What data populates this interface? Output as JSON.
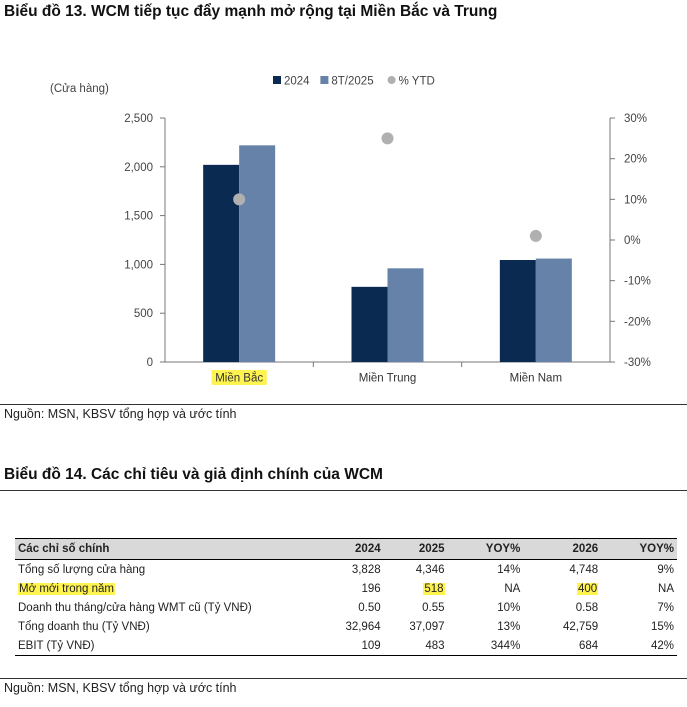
{
  "figure13": {
    "title": "Biểu đồ 13. WCM tiếp tục đẩy mạnh mở rộng tại Miền Bắc và Trung",
    "source": "Nguồn: MSN, KBSV tổng hợp và ước tính"
  },
  "chart_data": {
    "type": "bar",
    "title": "Biểu đồ 13. WCM tiếp tục đẩy mạnh mở rộng tại Miền Bắc và Trung",
    "ylabel": "(Cửa hàng)",
    "categories": [
      "Miền Bắc",
      "Miền Trung",
      "Miền Nam"
    ],
    "highlight_category": "Miền Bắc",
    "series": [
      {
        "name": "2024",
        "values": [
          2020,
          770,
          1045
        ],
        "color": "#0b2a52"
      },
      {
        "name": "8T/2025",
        "values": [
          2220,
          960,
          1060
        ],
        "color": "#6682a8"
      }
    ],
    "ytd_series": {
      "name": "% YTD",
      "values": [
        10,
        25,
        1
      ],
      "color": "#b0b0b0"
    },
    "ylim": [
      0,
      2500
    ],
    "yticks": [
      0,
      500,
      1000,
      1500,
      2000,
      2500
    ],
    "ytick_labels": [
      "0",
      "500",
      "1,000",
      "1,500",
      "2,000",
      "2,500"
    ],
    "y2lim": [
      -30,
      30
    ],
    "y2ticks": [
      -30,
      -20,
      -10,
      0,
      10,
      20,
      30
    ],
    "y2tick_labels": [
      "-30%",
      "-20%",
      "-10%",
      "0%",
      "10%",
      "20%",
      "30%"
    ],
    "legend": "top"
  },
  "figure14": {
    "title": "Biểu đồ 14. Các chỉ tiêu và giả định chính của WCM",
    "source": "Nguồn: MSN, KBSV tổng hợp và ước tính",
    "highlight_color": "#fff44f",
    "columns": [
      "Các chỉ số chính",
      "2024",
      "2025",
      "YOY%",
      "2026",
      "YOY%"
    ],
    "rows": [
      [
        "Tổng số lượng cửa hàng",
        "3,828",
        "4,346",
        "14%",
        "4,748",
        "9%"
      ],
      [
        "Mở mới trong năm",
        "196",
        "518",
        "NA",
        "400",
        "NA"
      ],
      [
        "Doanh thu tháng/cửa hàng WMT cũ (Tỷ VNĐ)",
        "0.50",
        "0.55",
        "10%",
        "0.58",
        "7%"
      ],
      [
        "Tổng doanh thu (Tỷ VNĐ)",
        "32,964",
        "37,097",
        "13%",
        "42,759",
        "15%"
      ],
      [
        "EBIT (Tỷ VNĐ)",
        "109",
        "483",
        "344%",
        "684",
        "42%"
      ]
    ]
  }
}
